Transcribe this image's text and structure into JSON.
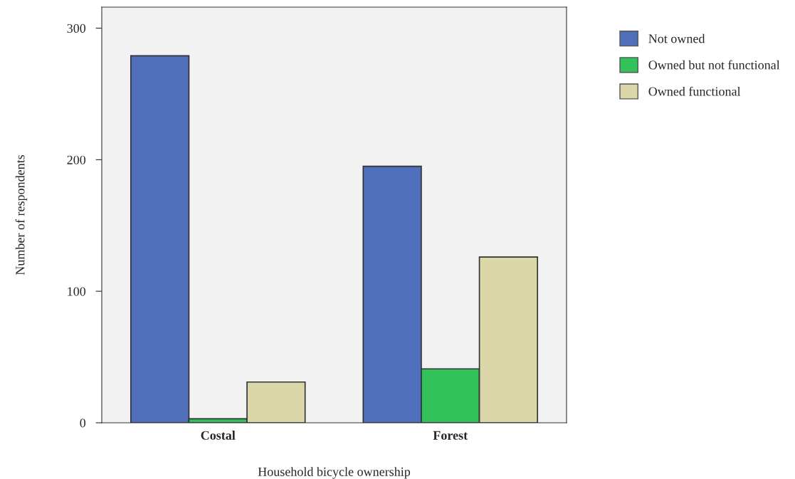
{
  "chart_data": {
    "type": "bar",
    "xlabel": "Household bicycle ownership",
    "ylabel": "Number of respondents",
    "categories": [
      "Costal",
      "Forest"
    ],
    "series": [
      {
        "name": "Not owned",
        "color": "#4f6fbb",
        "values": [
          279,
          195
        ]
      },
      {
        "name": "Owned but not functional",
        "color": "#33c15a",
        "values": [
          3,
          41
        ]
      },
      {
        "name": "Owned functional",
        "color": "#dbd7a9",
        "values": [
          31,
          126
        ]
      }
    ],
    "ylim": [
      0,
      316
    ],
    "yticks": [
      0,
      100,
      200,
      300
    ],
    "grid": false,
    "legend": "right"
  }
}
